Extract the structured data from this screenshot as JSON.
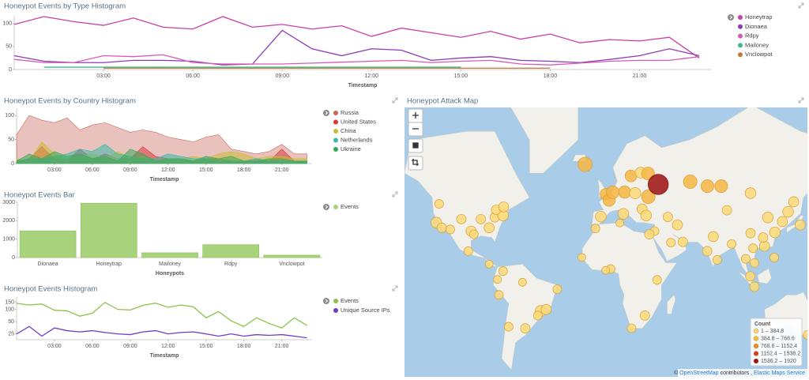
{
  "chart_data": [
    {
      "type": "line",
      "title": "Honeypot Events by Type Histogram",
      "x_label": "Timestamp",
      "x": [
        0,
        1,
        2,
        3,
        4,
        5,
        6,
        7,
        8,
        9,
        10,
        11,
        12,
        13,
        14,
        15,
        16,
        17,
        18,
        19,
        20,
        21,
        22,
        23
      ],
      "xlim": [
        0,
        23.4
      ],
      "xticks": [
        {
          "value": 3,
          "label": "03:00"
        },
        {
          "value": 6,
          "label": "06:00"
        },
        {
          "value": 9,
          "label": "09:00"
        },
        {
          "value": 12,
          "label": "12:00"
        },
        {
          "value": 15,
          "label": "15:00"
        },
        {
          "value": 18,
          "label": "18:00"
        },
        {
          "value": 21,
          "label": "21:00"
        }
      ],
      "ylim": [
        0,
        115
      ],
      "yticks": [
        0,
        50,
        100
      ],
      "series": [
        {
          "name": "Honeytrap",
          "color": "#c93fa6",
          "values": [
            98,
            115,
            104,
            96,
            112,
            92,
            88,
            115,
            92,
            98,
            88,
            95,
            72,
            90,
            80,
            70,
            83,
            66,
            77,
            58,
            65,
            62,
            70,
            25
          ]
        },
        {
          "name": "Dionaea",
          "color": "#8e3bb8",
          "values": [
            30,
            18,
            15,
            15,
            20,
            20,
            18,
            10,
            12,
            85,
            45,
            30,
            45,
            42,
            20,
            25,
            28,
            20,
            18,
            15,
            22,
            30,
            45,
            30
          ]
        },
        {
          "name": "Rdpy",
          "color": "#d65bb3",
          "values": [
            22,
            15,
            15,
            30,
            28,
            32,
            15,
            12,
            12,
            12,
            14,
            16,
            18,
            20,
            15,
            18,
            20,
            12,
            10,
            14,
            18,
            20,
            20,
            28
          ]
        },
        {
          "name": "Mailoney",
          "color": "#3dbb87",
          "values": [
            null,
            5,
            5,
            5,
            5,
            5,
            5,
            5,
            5,
            5,
            5,
            5,
            5,
            5,
            5,
            5,
            null,
            null,
            null,
            null,
            null,
            null,
            null,
            null
          ]
        },
        {
          "name": "Vnclowpot",
          "color": "#b97a35",
          "values": [
            null,
            null,
            null,
            3,
            3,
            3,
            3,
            3,
            3,
            3,
            3,
            3,
            3,
            3,
            3,
            3,
            3,
            3,
            3,
            null,
            null,
            null,
            null,
            null
          ]
        }
      ]
    },
    {
      "type": "area",
      "title": "Honeypot Events by Country Histogram",
      "x_label": "Timestamp",
      "x": [
        0,
        1,
        2,
        3,
        4,
        5,
        6,
        7,
        8,
        9,
        10,
        11,
        12,
        13,
        14,
        15,
        16,
        17,
        18,
        19,
        20,
        21,
        22,
        23
      ],
      "xlim": [
        0,
        23.4
      ],
      "xticks": [
        {
          "value": 3,
          "label": "03:00"
        },
        {
          "value": 6,
          "label": "06:00"
        },
        {
          "value": 9,
          "label": "09:00"
        },
        {
          "value": 12,
          "label": "12:00"
        },
        {
          "value": 15,
          "label": "15:00"
        },
        {
          "value": 18,
          "label": "18:00"
        },
        {
          "value": 21,
          "label": "21:00"
        }
      ],
      "ylim": [
        0,
        115
      ],
      "yticks": [
        0,
        50,
        100
      ],
      "series": [
        {
          "name": "Russia",
          "color": "#c9665a",
          "values": [
            60,
            100,
            90,
            85,
            95,
            70,
            80,
            85,
            75,
            65,
            70,
            65,
            55,
            50,
            45,
            55,
            60,
            30,
            25,
            20,
            25,
            40,
            20,
            20
          ]
        },
        {
          "name": "United States",
          "color": "#d9383a",
          "values": [
            5,
            10,
            35,
            10,
            5,
            30,
            10,
            20,
            10,
            10,
            35,
            15,
            10,
            10,
            5,
            10,
            10,
            5,
            5,
            10,
            5,
            30,
            5,
            5
          ]
        },
        {
          "name": "China",
          "color": "#c9bc35",
          "values": [
            10,
            5,
            45,
            20,
            10,
            15,
            20,
            10,
            25,
            10,
            15,
            5,
            10,
            10,
            15,
            10,
            20,
            25,
            20,
            10,
            15,
            15,
            10,
            10
          ]
        },
        {
          "name": "Netherlands",
          "color": "#36b9a9",
          "values": [
            5,
            10,
            10,
            15,
            20,
            30,
            25,
            40,
            20,
            15,
            10,
            10,
            20,
            15,
            10,
            10,
            5,
            5,
            5,
            10,
            5,
            5,
            5,
            5
          ]
        },
        {
          "name": "Ukraine",
          "color": "#34a95a",
          "values": [
            5,
            20,
            10,
            25,
            15,
            20,
            10,
            15,
            5,
            30,
            20,
            5,
            10,
            10,
            5,
            15,
            10,
            15,
            5,
            5,
            10,
            10,
            5,
            5
          ]
        }
      ]
    },
    {
      "type": "bar",
      "title": "Honeypot Events Bar",
      "x_label": "Honeypots",
      "categories": [
        "Dionaea",
        "Honeytrap",
        "Mailoney",
        "Rdpy",
        "Vnclowpot"
      ],
      "ylim": [
        0,
        3000
      ],
      "yticks": [
        0,
        1000,
        2000,
        3000
      ],
      "series": [
        {
          "name": "Events",
          "color": "#a8d27c",
          "values": [
            1450,
            2950,
            260,
            700,
            130
          ]
        }
      ]
    },
    {
      "type": "line",
      "title": "Honeypot Events Histogram",
      "x_label": "Timestamp",
      "x": [
        0,
        1,
        2,
        3,
        4,
        5,
        6,
        7,
        8,
        9,
        10,
        11,
        12,
        13,
        14,
        15,
        16,
        17,
        18,
        19,
        20,
        21,
        22,
        23
      ],
      "xlim": [
        0,
        23.4
      ],
      "xticks": [
        {
          "value": 3,
          "label": "03:00"
        },
        {
          "value": 6,
          "label": "06:00"
        },
        {
          "value": 9,
          "label": "09:00"
        },
        {
          "value": 12,
          "label": "12:00"
        },
        {
          "value": 15,
          "label": "15:00"
        },
        {
          "value": 18,
          "label": "18:00"
        },
        {
          "value": 21,
          "label": "21:00"
        }
      ],
      "log": true,
      "ylim": [
        18,
        200
      ],
      "yticks": [
        25,
        50,
        100,
        150
      ],
      "series": [
        {
          "name": "Events",
          "color": "#8bc34a",
          "values": [
            140,
            128,
            135,
            95,
            92,
            68,
            80,
            148,
            100,
            96,
            125,
            142,
            112,
            128,
            115,
            62,
            88,
            52,
            38,
            62,
            45,
            35,
            62,
            40
          ]
        },
        {
          "name": "Unique Source IPs",
          "color": "#6e3dc2",
          "values": [
            25,
            38,
            22,
            35,
            30,
            28,
            30,
            27,
            25,
            24,
            28,
            30,
            25,
            27,
            28,
            25,
            22,
            25,
            22,
            24,
            23,
            24,
            22,
            20
          ]
        }
      ]
    },
    {
      "type": "map",
      "title": "Honeypot Attack Map",
      "legend_title": "Count",
      "legend_labels": [
        "1 – 384.8",
        "384.8 – 768.6",
        "768.6 – 1152.4",
        "1152.4 – 1536.2",
        "1536.2 – 1920"
      ],
      "legend_bins": [
        1,
        384.8,
        768.6,
        1152.4,
        1536.2,
        1920
      ],
      "legend_colors": [
        "#fbd978",
        "#f6b643",
        "#ef8a2e",
        "#de3b26",
        "#9c1010"
      ],
      "attribution": {
        "prefix": "©",
        "link1": "OpenStreetMap",
        "middle": "contributors ,",
        "link2": "Elastic Maps Service"
      },
      "points": [
        {
          "lon": -15,
          "lat": 63,
          "count": 700
        },
        {
          "lon": -122,
          "lat": 37,
          "count": 300
        },
        {
          "lon": -118,
          "lat": 34,
          "count": 200
        },
        {
          "lon": -112,
          "lat": 33,
          "count": 150
        },
        {
          "lon": -104,
          "lat": 39,
          "count": 200
        },
        {
          "lon": -97,
          "lat": 32,
          "count": 250
        },
        {
          "lon": -95,
          "lat": 30,
          "count": 150
        },
        {
          "lon": -90,
          "lat": 39,
          "count": 200
        },
        {
          "lon": -84,
          "lat": 34,
          "count": 250
        },
        {
          "lon": -80,
          "lat": 40,
          "count": 200
        },
        {
          "lon": -74,
          "lat": 41,
          "count": 300
        },
        {
          "lon": -79,
          "lat": 44,
          "count": 200
        },
        {
          "lon": -120,
          "lat": 47,
          "count": 150
        },
        {
          "lon": -99,
          "lat": 19,
          "count": 150
        },
        {
          "lon": -84,
          "lat": 10,
          "count": 100
        },
        {
          "lon": -74,
          "lat": 5,
          "count": 150
        },
        {
          "lon": -78,
          "lat": -1,
          "count": 100
        },
        {
          "lon": -47,
          "lat": -23,
          "count": 300
        },
        {
          "lon": -43,
          "lat": -22,
          "count": 250
        },
        {
          "lon": -49,
          "lat": -26,
          "count": 150
        },
        {
          "lon": -35,
          "lat": -8,
          "count": 150
        },
        {
          "lon": -60,
          "lat": -3,
          "count": 100
        },
        {
          "lon": -58,
          "lat": -34,
          "count": 200
        },
        {
          "lon": -70,
          "lat": -33,
          "count": 150
        },
        {
          "lon": -77,
          "lat": -12,
          "count": 150
        },
        {
          "lon": 0,
          "lat": 51.5,
          "count": 400
        },
        {
          "lon": 2.3,
          "lat": 48.8,
          "count": 450
        },
        {
          "lon": -3.7,
          "lat": 40.4,
          "count": 300
        },
        {
          "lon": 12.5,
          "lat": 41.9,
          "count": 300
        },
        {
          "lon": 13.4,
          "lat": 52.5,
          "count": 450
        },
        {
          "lon": 4.9,
          "lat": 52.4,
          "count": 500
        },
        {
          "lon": 18,
          "lat": 59,
          "count": 400
        },
        {
          "lon": 21,
          "lat": 52,
          "count": 350
        },
        {
          "lon": 24.9,
          "lat": 60.2,
          "count": 300
        },
        {
          "lon": 30.5,
          "lat": 50.4,
          "count": 600
        },
        {
          "lon": 30.3,
          "lat": 59.9,
          "count": 500
        },
        {
          "lon": 26,
          "lat": 44.4,
          "count": 250
        },
        {
          "lon": 28.9,
          "lat": 41,
          "count": 300
        },
        {
          "lon": 44.5,
          "lat": 40.2,
          "count": 200
        },
        {
          "lon": 60.6,
          "lat": 56.8,
          "count": 600
        },
        {
          "lon": 73,
          "lat": 55,
          "count": 500
        },
        {
          "lon": 82.9,
          "lat": 55,
          "count": 500
        },
        {
          "lon": 104,
          "lat": 52,
          "count": 300
        },
        {
          "lon": 131,
          "lat": 43,
          "count": 300
        },
        {
          "lon": 135,
          "lat": 48,
          "count": 250
        },
        {
          "lon": 51.4,
          "lat": 35.7,
          "count": 250
        },
        {
          "lon": 46.7,
          "lat": 24.7,
          "count": 150
        },
        {
          "lon": 55.3,
          "lat": 25.2,
          "count": 200
        },
        {
          "lon": 35,
          "lat": 32,
          "count": 150
        },
        {
          "lon": 77.2,
          "lat": 28.6,
          "count": 250
        },
        {
          "lon": 72.8,
          "lat": 19,
          "count": 200
        },
        {
          "lon": 80,
          "lat": 13,
          "count": 150
        },
        {
          "lon": 90.4,
          "lat": 23.8,
          "count": 150
        },
        {
          "lon": 100.5,
          "lat": 13.7,
          "count": 150
        },
        {
          "lon": 106.8,
          "lat": 10.8,
          "count": 150
        },
        {
          "lon": 105.8,
          "lat": 21,
          "count": 150
        },
        {
          "lon": 103.8,
          "lat": 1.3,
          "count": 200
        },
        {
          "lon": 106.8,
          "lat": -6.2,
          "count": 200
        },
        {
          "lon": 116.4,
          "lat": 39.9,
          "count": 300
        },
        {
          "lon": 121.5,
          "lat": 31.2,
          "count": 300
        },
        {
          "lon": 114,
          "lat": 22.3,
          "count": 250
        },
        {
          "lon": 113,
          "lat": 28,
          "count": 200
        },
        {
          "lon": 126.9,
          "lat": 37.6,
          "count": 250
        },
        {
          "lon": 139.7,
          "lat": 35.7,
          "count": 250
        },
        {
          "lon": 121,
          "lat": 14.6,
          "count": 150
        },
        {
          "lon": 87,
          "lat": 43.8,
          "count": 200
        },
        {
          "lon": 104,
          "lat": 30.7,
          "count": 200
        },
        {
          "lon": 3.4,
          "lat": 6.5,
          "count": 150
        },
        {
          "lon": 31.2,
          "lat": 30,
          "count": 200
        },
        {
          "lon": 36.8,
          "lat": -1.3,
          "count": 150
        },
        {
          "lon": 28,
          "lat": -26,
          "count": 200
        },
        {
          "lon": 18.4,
          "lat": -33.9,
          "count": 150
        },
        {
          "lon": -7.6,
          "lat": 33.6,
          "count": 150
        },
        {
          "lon": 10,
          "lat": 36.8,
          "count": 100
        },
        {
          "lon": -17.4,
          "lat": 14.7,
          "count": 100
        },
        {
          "lon": -0.2,
          "lat": 5.6,
          "count": 100
        },
        {
          "lon": 151.2,
          "lat": -33.9,
          "count": 200
        },
        {
          "lon": 145,
          "lat": -37.8,
          "count": 150
        },
        {
          "lon": 115.9,
          "lat": -32,
          "count": 150
        },
        {
          "lon": 153,
          "lat": -27.5,
          "count": 150
        },
        {
          "lon": -73.6,
          "lat": 45.5,
          "count": 250
        },
        {
          "lon": 37.6,
          "lat": 55.7,
          "count": 1700
        }
      ]
    }
  ]
}
